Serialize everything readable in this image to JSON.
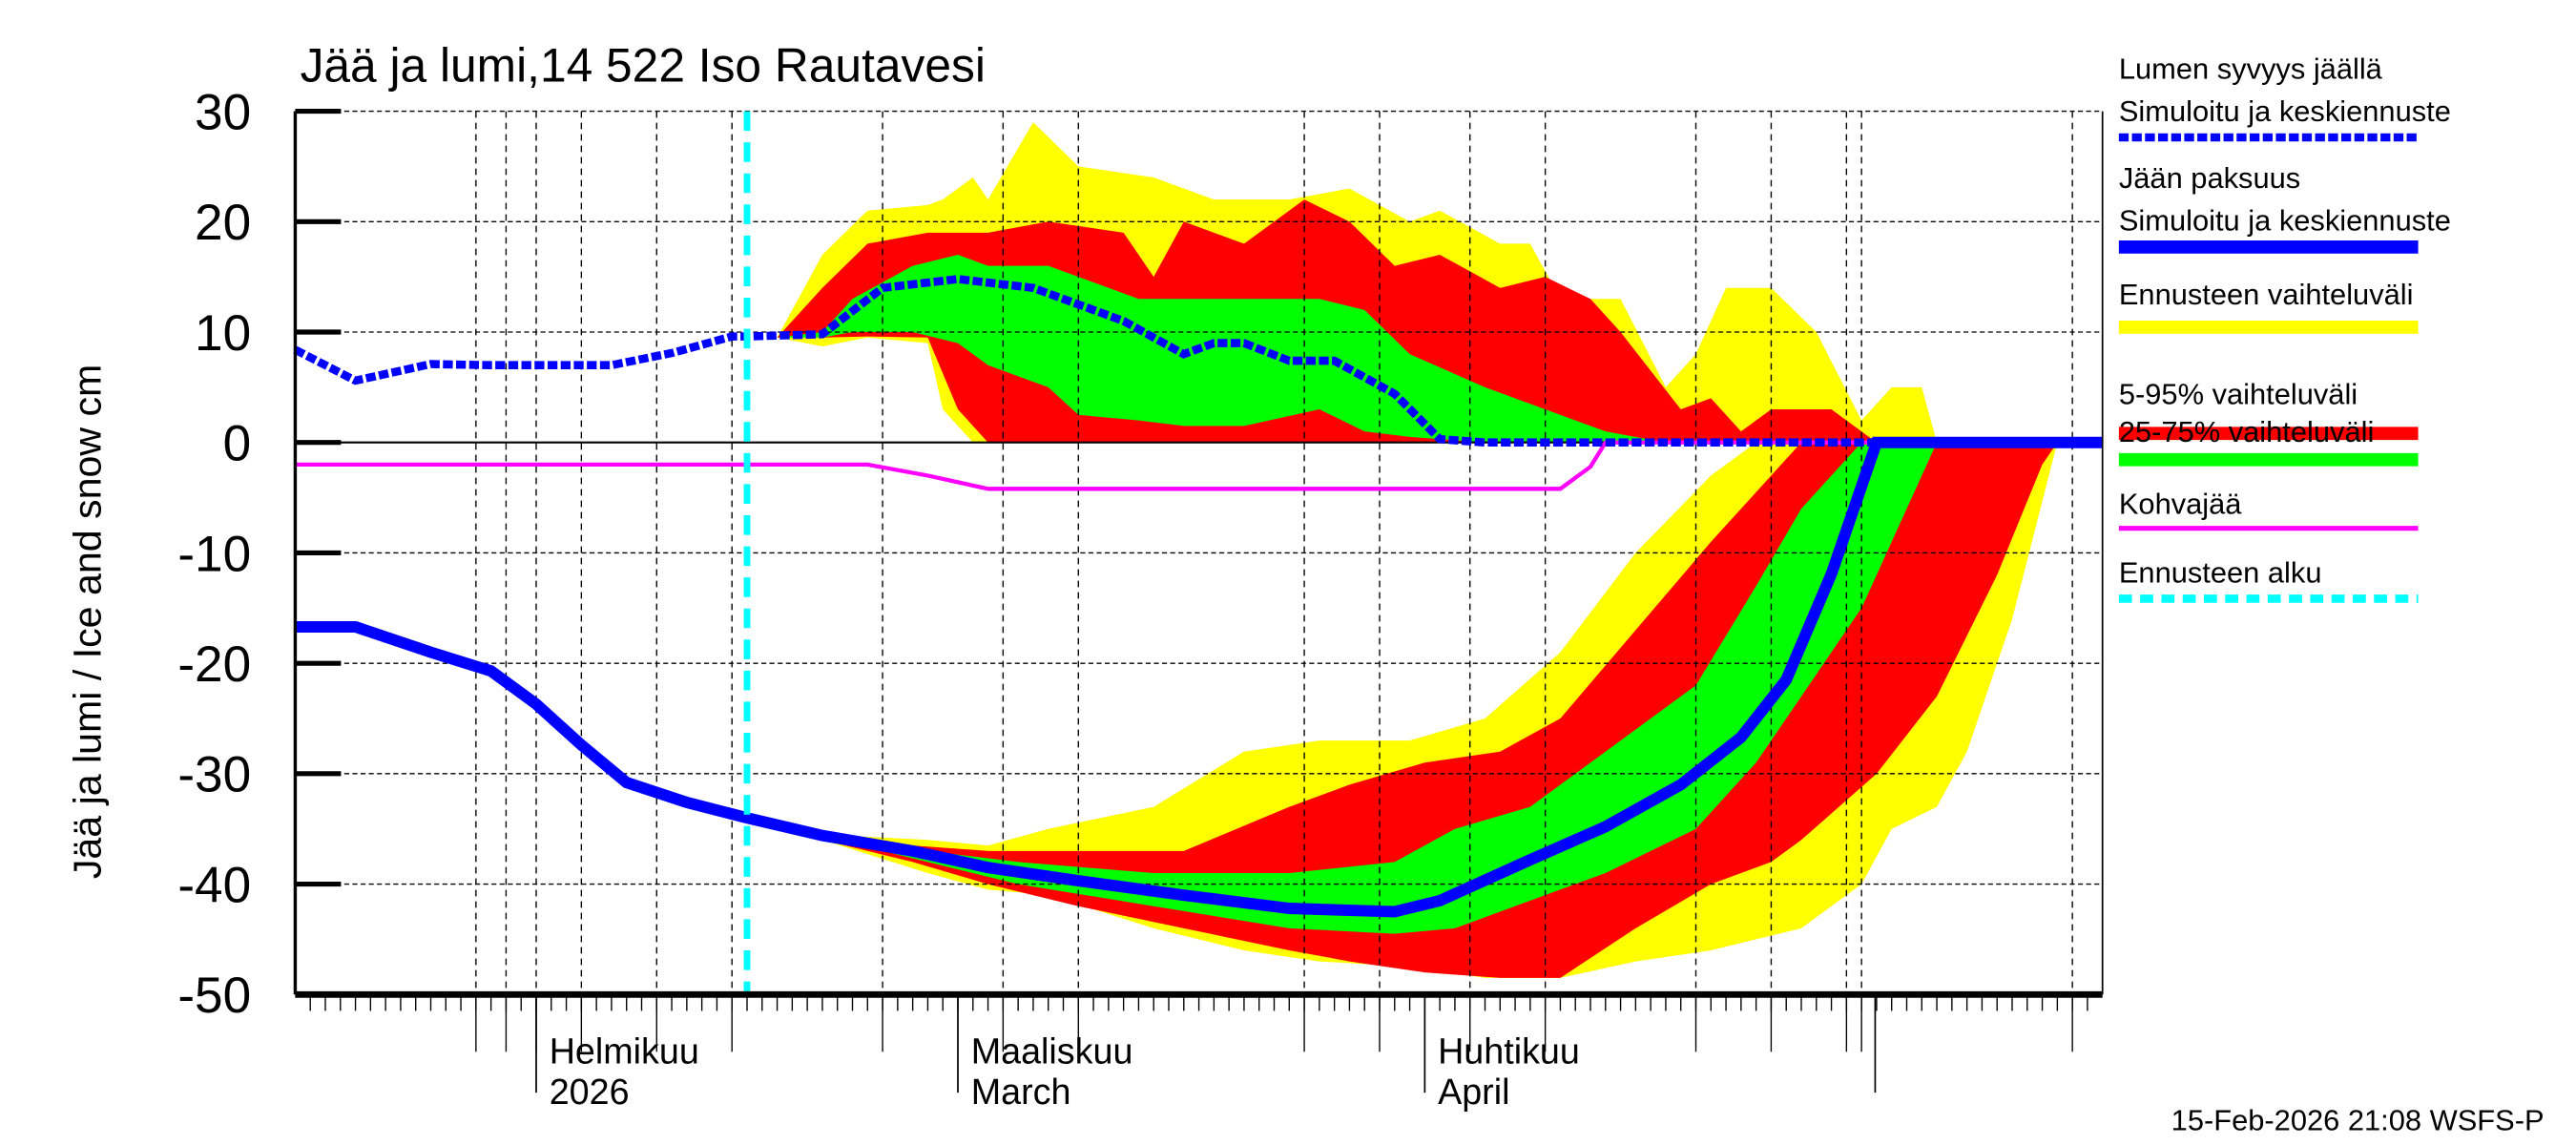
{
  "chart_data": {
    "type": "area",
    "title": "Jää ja lumi,14 522 Iso Rautavesi",
    "ylabel": "Jää ja lumi / Ice and snow    cm",
    "ylim": [
      -50,
      30
    ],
    "yticks": [
      30,
      20,
      10,
      0,
      -10,
      -20,
      -30,
      -40,
      -50
    ],
    "xlim": [
      "2026-01-16",
      "2026-05-16"
    ],
    "x_labels": [
      {
        "date": "2026-02-01",
        "line1": "Helmikuu",
        "line2": "2026"
      },
      {
        "date": "2026-03-01",
        "line1": "Maaliskuu",
        "line2": "March"
      },
      {
        "date": "2026-04-01",
        "line1": "Huhtikuu",
        "line2": "April"
      }
    ],
    "grid": true,
    "forecast_start": "2026-02-15",
    "timestamp": "15-Feb-2026 21:08 WSFS-P",
    "colors": {
      "snow": "#0000ff",
      "ice": "#0000ff",
      "range_full": "#ffff00",
      "range_5_95": "#ff0000",
      "range_25_75": "#00ff00",
      "slush": "#ff00ff",
      "forecast_start": "#00ffff"
    },
    "legend": {
      "placement": "right",
      "items": [
        {
          "line1": "Lumen syvyys jäällä",
          "line2": "Simuloitu ja keskiennuste",
          "style": "snow"
        },
        {
          "line1": "Jään paksuus",
          "line2": "Simuloitu ja keskiennuste",
          "style": "ice"
        },
        {
          "line1": "Ennusteen vaihteluväli",
          "style": "range_full"
        },
        {
          "line1": "5-95% vaihteluväli",
          "style": "range_5_95"
        },
        {
          "line1": "25-75% vaihteluväli",
          "style": "range_25_75"
        },
        {
          "line1": "Kohvajää",
          "style": "slush"
        },
        {
          "line1": "Ennusteen alku",
          "style": "forecast_start"
        }
      ]
    },
    "series": [
      {
        "name": "Lumen syvyys jäällä",
        "points": [
          [
            "2026-01-16",
            8.4
          ],
          [
            "2026-01-20",
            5.6
          ],
          [
            "2026-01-25",
            7.1
          ],
          [
            "2026-01-29",
            7
          ],
          [
            "2026-02-06",
            7
          ],
          [
            "2026-02-10",
            8.1
          ],
          [
            "2026-02-14",
            9.6
          ],
          [
            "2026-02-15",
            9.6
          ],
          [
            "2026-02-20",
            9.8
          ],
          [
            "2026-02-24",
            14
          ],
          [
            "2026-03-01",
            14.8
          ],
          [
            "2026-03-06",
            14
          ],
          [
            "2026-03-12",
            11
          ],
          [
            "2026-03-16",
            8
          ],
          [
            "2026-03-18",
            9
          ],
          [
            "2026-03-20",
            9
          ],
          [
            "2026-03-23",
            7.4
          ],
          [
            "2026-03-26",
            7.4
          ],
          [
            "2026-03-30",
            4.4
          ],
          [
            "2026-04-02",
            0.3
          ],
          [
            "2026-04-05",
            0
          ],
          [
            "2026-05-16",
            0
          ]
        ]
      },
      {
        "name": "Jään paksuus",
        "points": [
          [
            "2026-01-16",
            -16.7
          ],
          [
            "2026-01-20",
            -16.7
          ],
          [
            "2026-01-25",
            -19
          ],
          [
            "2026-01-29",
            -20.7
          ],
          [
            "2026-02-01",
            -23.7
          ],
          [
            "2026-02-04",
            -27.4
          ],
          [
            "2026-02-07",
            -30.8
          ],
          [
            "2026-02-11",
            -32.6
          ],
          [
            "2026-02-15",
            -34
          ],
          [
            "2026-02-20",
            -35.6
          ],
          [
            "2026-02-26",
            -37
          ],
          [
            "2026-03-03",
            -38.5
          ],
          [
            "2026-03-09",
            -39.7
          ],
          [
            "2026-03-16",
            -41
          ],
          [
            "2026-03-23",
            -42.2
          ],
          [
            "2026-03-30",
            -42.5
          ],
          [
            "2026-04-02",
            -41.5
          ],
          [
            "2026-04-08",
            -37.8
          ],
          [
            "2026-04-13",
            -34.8
          ],
          [
            "2026-04-18",
            -31
          ],
          [
            "2026-04-22",
            -26.7
          ],
          [
            "2026-04-25",
            -21.5
          ],
          [
            "2026-04-28",
            -11.9
          ],
          [
            "2026-05-01",
            0
          ],
          [
            "2026-05-16",
            0
          ]
        ]
      },
      {
        "name": "Kohvajää",
        "points": [
          [
            "2026-01-16",
            -2
          ],
          [
            "2026-02-23",
            -2
          ],
          [
            "2026-02-27",
            -3
          ],
          [
            "2026-03-03",
            -4.2
          ],
          [
            "2026-04-10",
            -4.2
          ],
          [
            "2026-04-12",
            -2.2
          ],
          [
            "2026-04-13",
            0
          ],
          [
            "2026-05-16",
            0
          ]
        ]
      }
    ],
    "bands": [
      {
        "name": "Ennusteen vaihteluväli",
        "part": "snow",
        "points": [
          [
            "2026-02-17",
            9.5,
            9.5
          ],
          [
            "2026-02-20",
            8.7,
            17
          ],
          [
            "2026-02-23",
            9.5,
            21
          ],
          [
            "2026-02-27",
            9,
            21.5
          ],
          [
            "2026-02-28",
            3,
            22
          ],
          [
            "2026-03-02",
            0,
            24
          ],
          [
            "2026-03-03",
            0,
            22
          ],
          [
            "2026-03-06",
            0,
            29
          ],
          [
            "2026-03-09",
            0,
            25
          ],
          [
            "2026-03-14",
            0,
            24
          ],
          [
            "2026-03-18",
            0,
            22
          ],
          [
            "2026-03-23",
            0,
            22
          ],
          [
            "2026-03-27",
            0,
            23
          ],
          [
            "2026-03-31",
            0,
            20
          ],
          [
            "2026-04-02",
            0,
            21
          ],
          [
            "2026-04-06",
            0,
            18
          ],
          [
            "2026-04-08",
            0,
            18
          ],
          [
            "2026-04-10",
            0,
            13
          ],
          [
            "2026-04-14",
            0,
            13
          ],
          [
            "2026-04-17",
            0,
            5
          ],
          [
            "2026-04-19",
            0,
            8
          ],
          [
            "2026-04-21",
            0,
            14
          ],
          [
            "2026-04-24",
            0,
            14
          ],
          [
            "2026-04-27",
            0,
            10
          ],
          [
            "2026-04-30",
            0,
            2
          ],
          [
            "2026-05-02",
            0,
            5
          ],
          [
            "2026-05-04",
            0,
            5
          ],
          [
            "2026-05-05",
            0,
            0
          ]
        ]
      },
      {
        "name": "5-95% vaihteluväli",
        "part": "snow",
        "points": [
          [
            "2026-02-17",
            9.5,
            9.5
          ],
          [
            "2026-02-20",
            9.5,
            14
          ],
          [
            "2026-02-23",
            9.6,
            18
          ],
          [
            "2026-02-27",
            9.5,
            19
          ],
          [
            "2026-03-01",
            3,
            19
          ],
          [
            "2026-03-03",
            0,
            19
          ],
          [
            "2026-03-07",
            0,
            20
          ],
          [
            "2026-03-12",
            0,
            19
          ],
          [
            "2026-03-14",
            0,
            15
          ],
          [
            "2026-03-16",
            0,
            20
          ],
          [
            "2026-03-20",
            0,
            18
          ],
          [
            "2026-03-24",
            0,
            22
          ],
          [
            "2026-03-27",
            0,
            20
          ],
          [
            "2026-03-30",
            0,
            16
          ],
          [
            "2026-04-02",
            0,
            17
          ],
          [
            "2026-04-06",
            0,
            14
          ],
          [
            "2026-04-09",
            0,
            15
          ],
          [
            "2026-04-12",
            0,
            13
          ],
          [
            "2026-04-14",
            0,
            10
          ],
          [
            "2026-04-18",
            0,
            3
          ],
          [
            "2026-04-20",
            0,
            4
          ],
          [
            "2026-04-22",
            0,
            1
          ],
          [
            "2026-04-24",
            0,
            3
          ],
          [
            "2026-04-28",
            0,
            3
          ],
          [
            "2026-05-01",
            0,
            0
          ]
        ]
      },
      {
        "name": "25-75% vaihteluväli",
        "part": "snow",
        "points": [
          [
            "2026-02-17",
            9.5,
            9.5
          ],
          [
            "2026-02-20",
            9.5,
            10
          ],
          [
            "2026-02-22",
            10,
            13
          ],
          [
            "2026-02-26",
            10,
            16
          ],
          [
            "2026-03-01",
            9,
            17
          ],
          [
            "2026-03-03",
            7,
            16
          ],
          [
            "2026-03-07",
            5,
            16
          ],
          [
            "2026-03-09",
            2.5,
            15
          ],
          [
            "2026-03-13",
            2,
            13
          ],
          [
            "2026-03-16",
            1.5,
            13
          ],
          [
            "2026-03-20",
            1.5,
            13
          ],
          [
            "2026-03-25",
            3,
            13
          ],
          [
            "2026-03-28",
            1,
            12
          ],
          [
            "2026-03-31",
            0.5,
            8
          ],
          [
            "2026-04-05",
            0,
            5
          ],
          [
            "2026-04-09",
            0,
            3
          ],
          [
            "2026-04-13",
            0,
            1
          ],
          [
            "2026-04-17",
            0,
            0
          ]
        ]
      },
      {
        "name": "Ennusteen vaihteluväli",
        "part": "ice",
        "points": [
          [
            "2026-02-15",
            -34,
            -34
          ],
          [
            "2026-02-20",
            -36,
            -35.5
          ],
          [
            "2026-02-27",
            -39,
            -36
          ],
          [
            "2026-03-03",
            -40.5,
            -36.5
          ],
          [
            "2026-03-07",
            -41,
            -35
          ],
          [
            "2026-03-14",
            -44,
            -33
          ],
          [
            "2026-03-20",
            -46,
            -28
          ],
          [
            "2026-03-25",
            -47,
            -27
          ],
          [
            "2026-03-31",
            -47.5,
            -27
          ],
          [
            "2026-04-05",
            -48.5,
            -25
          ],
          [
            "2026-04-10",
            -48.5,
            -19
          ],
          [
            "2026-04-15",
            -47,
            -10
          ],
          [
            "2026-04-20",
            -46,
            -3
          ],
          [
            "2026-04-23",
            -45,
            0
          ],
          [
            "2026-04-26",
            -44,
            0
          ],
          [
            "2026-04-30",
            -40,
            0
          ],
          [
            "2026-05-02",
            -35,
            0
          ],
          [
            "2026-05-05",
            -33,
            0
          ],
          [
            "2026-05-07",
            -28,
            0
          ],
          [
            "2026-05-10",
            -16,
            0
          ],
          [
            "2026-05-13",
            0,
            0
          ]
        ]
      },
      {
        "name": "5-95% vaihteluväli",
        "part": "ice",
        "points": [
          [
            "2026-02-15",
            -34,
            -34
          ],
          [
            "2026-02-20",
            -36,
            -35.5
          ],
          [
            "2026-02-26",
            -38,
            -36.5
          ],
          [
            "2026-03-03",
            -40,
            -37
          ],
          [
            "2026-03-09",
            -42,
            -37
          ],
          [
            "2026-03-16",
            -44,
            -37
          ],
          [
            "2026-03-23",
            -46,
            -33
          ],
          [
            "2026-03-27",
            -47,
            -31
          ],
          [
            "2026-04-01",
            -48,
            -29
          ],
          [
            "2026-04-06",
            -48.5,
            -28
          ],
          [
            "2026-04-10",
            -48.5,
            -25
          ],
          [
            "2026-04-15",
            -44,
            -17
          ],
          [
            "2026-04-20",
            -40,
            -9
          ],
          [
            "2026-04-24",
            -38,
            -3
          ],
          [
            "2026-04-26",
            -36,
            0
          ],
          [
            "2026-05-01",
            -30,
            0
          ],
          [
            "2026-05-05",
            -23,
            0
          ],
          [
            "2026-05-09",
            -12,
            0
          ],
          [
            "2026-05-12",
            -2,
            0
          ],
          [
            "2026-05-13",
            0,
            0
          ]
        ]
      },
      {
        "name": "25-75% vaihteluväli",
        "part": "ice",
        "points": [
          [
            "2026-02-15",
            -34,
            -34
          ],
          [
            "2026-02-27",
            -38,
            -37
          ],
          [
            "2026-03-05",
            -40,
            -38
          ],
          [
            "2026-03-14",
            -42,
            -39
          ],
          [
            "2026-03-23",
            -44,
            -39
          ],
          [
            "2026-03-30",
            -44.5,
            -38
          ],
          [
            "2026-04-03",
            -44,
            -35
          ],
          [
            "2026-04-08",
            -41.5,
            -33
          ],
          [
            "2026-04-13",
            -39,
            -28
          ],
          [
            "2026-04-19",
            -35,
            -22
          ],
          [
            "2026-04-23",
            -29,
            -13
          ],
          [
            "2026-04-26",
            -23,
            -6
          ],
          [
            "2026-04-30",
            -15,
            0
          ],
          [
            "2026-05-03",
            -6,
            0
          ],
          [
            "2026-05-05",
            0,
            0
          ]
        ]
      }
    ]
  }
}
